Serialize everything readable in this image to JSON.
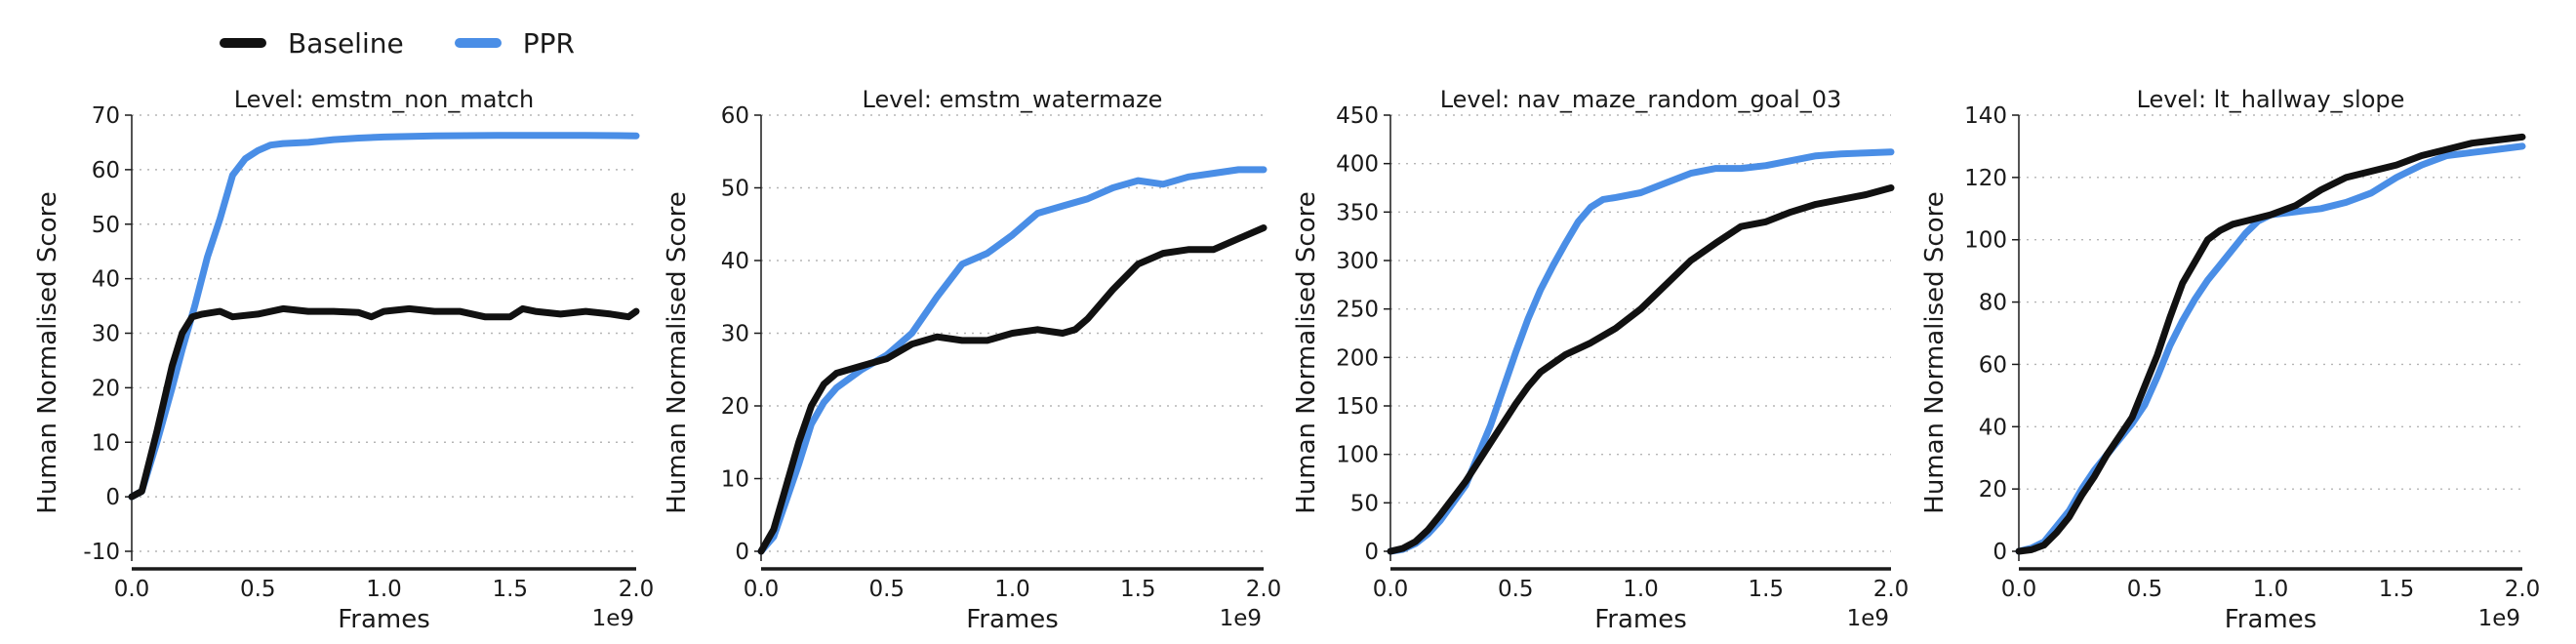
{
  "legend": {
    "items": [
      {
        "label": "Baseline",
        "color": "#111111"
      },
      {
        "label": "PPR",
        "color": "#4a8ee6"
      }
    ]
  },
  "chart_data": [
    {
      "type": "line",
      "title": "Level: emstm_non_match",
      "xlabel": "Frames",
      "ylabel": "Human Normalised Score",
      "x_offset_label": "1e9",
      "xlim": [
        0,
        2.0
      ],
      "ylim": [
        -10,
        70
      ],
      "xticks": [
        0.0,
        0.5,
        1.0,
        1.5,
        2.0
      ],
      "yticks": [
        -10,
        0,
        10,
        20,
        30,
        40,
        50,
        60,
        70
      ],
      "grid": "horizontal dotted",
      "series": [
        {
          "name": "Baseline",
          "x": [
            0,
            0.04,
            0.1,
            0.16,
            0.2,
            0.24,
            0.28,
            0.35,
            0.4,
            0.5,
            0.6,
            0.7,
            0.8,
            0.9,
            0.95,
            1.0,
            1.1,
            1.2,
            1.3,
            1.4,
            1.5,
            1.55,
            1.6,
            1.7,
            1.8,
            1.9,
            1.97,
            2.0
          ],
          "y": [
            0,
            1,
            12,
            24,
            30,
            33,
            33.5,
            34,
            33,
            33.5,
            34.5,
            34,
            34,
            33.8,
            33,
            34,
            34.5,
            34,
            34,
            33,
            33,
            34.5,
            34,
            33.5,
            34,
            33.5,
            33,
            34
          ]
        },
        {
          "name": "PPR",
          "x": [
            0,
            0.04,
            0.1,
            0.16,
            0.2,
            0.25,
            0.3,
            0.35,
            0.4,
            0.45,
            0.5,
            0.55,
            0.6,
            0.7,
            0.8,
            0.9,
            1.0,
            1.2,
            1.5,
            1.8,
            2.0
          ],
          "y": [
            0,
            1,
            10,
            20,
            27,
            35,
            44,
            51,
            59,
            62,
            63.5,
            64.5,
            64.8,
            65,
            65.5,
            65.8,
            66,
            66.2,
            66.3,
            66.3,
            66.2
          ]
        }
      ]
    },
    {
      "type": "line",
      "title": "Level: emstm_watermaze",
      "xlabel": "Frames",
      "ylabel": "Human Normalised Score",
      "x_offset_label": "1e9",
      "xlim": [
        0,
        2.0
      ],
      "ylim": [
        0,
        60
      ],
      "xticks": [
        0.0,
        0.5,
        1.0,
        1.5,
        2.0
      ],
      "yticks": [
        0,
        10,
        20,
        30,
        40,
        50,
        60
      ],
      "grid": "horizontal dotted",
      "series": [
        {
          "name": "Baseline",
          "x": [
            0,
            0.05,
            0.1,
            0.15,
            0.2,
            0.25,
            0.3,
            0.4,
            0.5,
            0.6,
            0.7,
            0.8,
            0.85,
            0.9,
            1.0,
            1.1,
            1.2,
            1.25,
            1.3,
            1.4,
            1.5,
            1.6,
            1.7,
            1.8,
            1.9,
            2.0
          ],
          "y": [
            0,
            3,
            9,
            15,
            20,
            23,
            24.5,
            25.5,
            26.5,
            28.5,
            29.5,
            29,
            29,
            29,
            30,
            30.5,
            30,
            30.5,
            32,
            36,
            39.5,
            41,
            41.5,
            41.5,
            43,
            44.5
          ]
        },
        {
          "name": "PPR",
          "x": [
            0,
            0.05,
            0.1,
            0.15,
            0.2,
            0.25,
            0.3,
            0.4,
            0.5,
            0.6,
            0.65,
            0.7,
            0.8,
            0.9,
            1.0,
            1.1,
            1.2,
            1.3,
            1.4,
            1.5,
            1.6,
            1.7,
            1.8,
            1.9,
            2.0
          ],
          "y": [
            0,
            2,
            7,
            12,
            17.5,
            20.5,
            22.5,
            25,
            27,
            30,
            32.5,
            35,
            39.5,
            41,
            43.5,
            46.5,
            47.5,
            48.5,
            50,
            51,
            50.5,
            51.5,
            52,
            52.5,
            52.5
          ]
        }
      ]
    },
    {
      "type": "line",
      "title": "Level: nav_maze_random_goal_03",
      "xlabel": "Frames",
      "ylabel": "Human Normalised Score",
      "x_offset_label": "1e9",
      "xlim": [
        0,
        2.0
      ],
      "ylim": [
        0,
        450
      ],
      "xticks": [
        0.0,
        0.5,
        1.0,
        1.5,
        2.0
      ],
      "yticks": [
        0,
        50,
        100,
        150,
        200,
        250,
        300,
        350,
        400,
        450
      ],
      "grid": "horizontal dotted",
      "series": [
        {
          "name": "Baseline",
          "x": [
            0,
            0.05,
            0.1,
            0.15,
            0.2,
            0.3,
            0.4,
            0.5,
            0.55,
            0.6,
            0.7,
            0.8,
            0.9,
            1.0,
            1.1,
            1.2,
            1.3,
            1.4,
            1.5,
            1.6,
            1.7,
            1.8,
            1.9,
            2.0
          ],
          "y": [
            0,
            3,
            10,
            22,
            38,
            72,
            112,
            152,
            170,
            185,
            203,
            215,
            230,
            250,
            275,
            300,
            318,
            335,
            340,
            350,
            358,
            363,
            368,
            375
          ]
        },
        {
          "name": "PPR",
          "x": [
            0,
            0.05,
            0.1,
            0.15,
            0.2,
            0.3,
            0.4,
            0.5,
            0.55,
            0.6,
            0.65,
            0.7,
            0.75,
            0.8,
            0.85,
            0.9,
            1.0,
            1.1,
            1.2,
            1.3,
            1.4,
            1.5,
            1.6,
            1.7,
            1.8,
            1.9,
            2.0
          ],
          "y": [
            0,
            2,
            8,
            18,
            32,
            68,
            130,
            205,
            240,
            270,
            295,
            318,
            340,
            355,
            363,
            365,
            370,
            380,
            390,
            395,
            395,
            398,
            403,
            408,
            410,
            411,
            412
          ]
        }
      ]
    },
    {
      "type": "line",
      "title": "Level: lt_hallway_slope",
      "xlabel": "Frames",
      "ylabel": "Human Normalised Score",
      "x_offset_label": "1e9",
      "xlim": [
        0,
        2.0
      ],
      "ylim": [
        0,
        140
      ],
      "xticks": [
        0.0,
        0.5,
        1.0,
        1.5,
        2.0
      ],
      "yticks": [
        0,
        20,
        40,
        60,
        80,
        100,
        120,
        140
      ],
      "grid": "horizontal dotted",
      "series": [
        {
          "name": "Baseline",
          "x": [
            0,
            0.05,
            0.1,
            0.15,
            0.2,
            0.25,
            0.3,
            0.35,
            0.4,
            0.45,
            0.5,
            0.55,
            0.6,
            0.65,
            0.7,
            0.75,
            0.8,
            0.85,
            0.9,
            1.0,
            1.1,
            1.2,
            1.3,
            1.4,
            1.5,
            1.6,
            1.7,
            1.8,
            1.9,
            2.0
          ],
          "y": [
            0,
            0.5,
            2,
            6,
            11,
            18,
            24,
            31,
            37,
            43,
            53,
            63,
            75,
            86,
            93,
            100,
            103,
            105,
            106,
            108,
            111,
            116,
            120,
            122,
            124,
            127,
            129,
            131,
            132,
            133
          ]
        },
        {
          "name": "PPR",
          "x": [
            0,
            0.05,
            0.1,
            0.15,
            0.2,
            0.25,
            0.3,
            0.35,
            0.4,
            0.45,
            0.5,
            0.55,
            0.6,
            0.65,
            0.7,
            0.75,
            0.8,
            0.85,
            0.9,
            0.95,
            1.0,
            1.1,
            1.2,
            1.3,
            1.4,
            1.5,
            1.6,
            1.7,
            1.8,
            1.9,
            2.0
          ],
          "y": [
            0,
            1,
            3,
            8,
            13,
            20,
            26,
            31,
            36,
            41,
            47,
            56,
            66,
            74,
            81,
            87,
            92,
            97,
            102,
            106,
            108,
            109,
            110,
            112,
            115,
            120,
            124,
            127,
            128,
            129,
            130
          ]
        }
      ]
    }
  ]
}
